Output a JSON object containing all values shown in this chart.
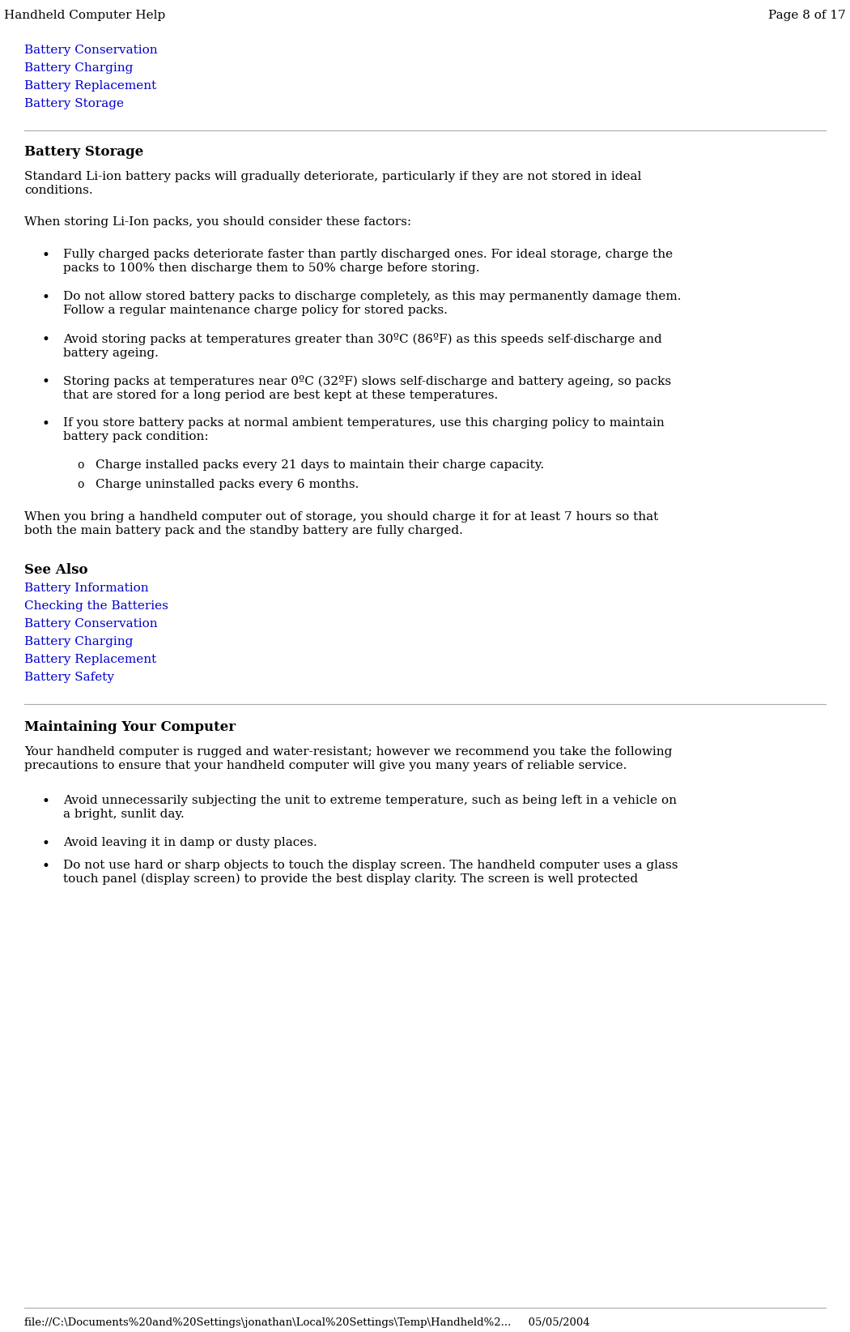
{
  "header_left": "Handheld Computer Help",
  "header_right": "Page 8 of 17",
  "footer_text": "file://C:\\Documents%20and%20Settings\\jonathan\\Local%20Settings\\Temp\\Handheld%2...     05/05/2004",
  "nav_links": [
    "Battery Conservation",
    "Battery Charging",
    "Battery Replacement",
    "Battery Storage"
  ],
  "section1_title": "Battery Storage",
  "section1_para1": "Standard Li-ion battery packs will gradually deteriorate, particularly if they are not stored in ideal\nconditions.",
  "section1_para2": "When storing Li-Ion packs, you should consider these factors:",
  "section1_bullets": [
    "Fully charged packs deteriorate faster than partly discharged ones. For ideal storage, charge the\npacks to 100% then discharge them to 50% charge before storing.",
    "Do not allow stored battery packs to discharge completely, as this may permanently damage them.\nFollow a regular maintenance charge policy for stored packs.",
    "Avoid storing packs at temperatures greater than 30ºC (86ºF) as this speeds self-discharge and\nbattery ageing.",
    "Storing packs at temperatures near 0ºC (32ºF) slows self-discharge and battery ageing, so packs\nthat are stored for a long period are best kept at these temperatures.",
    "If you store battery packs at normal ambient temperatures, use this charging policy to maintain\nbattery pack condition:"
  ],
  "section1_sub_bullets": [
    "Charge installed packs every 21 days to maintain their charge capacity.",
    "Charge uninstalled packs every 6 months."
  ],
  "section1_para3": "When you bring a handheld computer out of storage, you should charge it for at least 7 hours so that\nboth the main battery pack and the standby battery are fully charged.",
  "see_also_title": "See Also",
  "see_also_links": [
    "Battery Information",
    "Checking the Batteries",
    "Battery Conservation",
    "Battery Charging",
    "Battery Replacement",
    "Battery Safety"
  ],
  "section2_title": "Maintaining Your Computer",
  "section2_para1": "Your handheld computer is rugged and water-resistant; however we recommend you take the following\nprecautions to ensure that your handheld computer will give you many years of reliable service.",
  "section2_bullets": [
    "Avoid unnecessarily subjecting the unit to extreme temperature, such as being left in a vehicle on\na bright, sunlit day.",
    "Avoid leaving it in damp or dusty places.",
    "Do not use hard or sharp objects to touch the display screen. The handheld computer uses a glass\ntouch panel (display screen) to provide the best display clarity. The screen is well protected"
  ],
  "bg_color": "#ffffff",
  "text_color": "#000000",
  "link_color": "#0000cc",
  "hr_color": "#aaaaaa",
  "header_font_size": 11,
  "body_font_size": 11,
  "title_font_size": 12
}
